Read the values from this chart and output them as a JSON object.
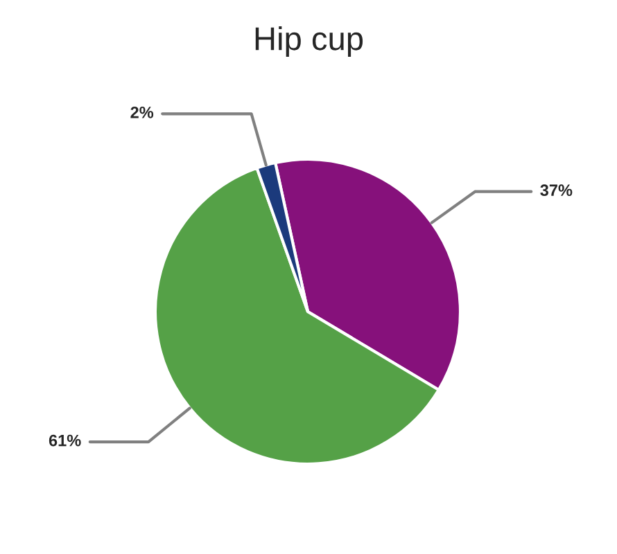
{
  "chart_data": {
    "type": "pie",
    "title": "Hip cup",
    "categories": [
      null,
      null,
      null
    ],
    "values": [
      37,
      61,
      2
    ],
    "colors": [
      "#86117b",
      "#55a147",
      "#1b3a7c"
    ],
    "value_labels": [
      "37%",
      "61%",
      "2%"
    ],
    "legend": false
  }
}
